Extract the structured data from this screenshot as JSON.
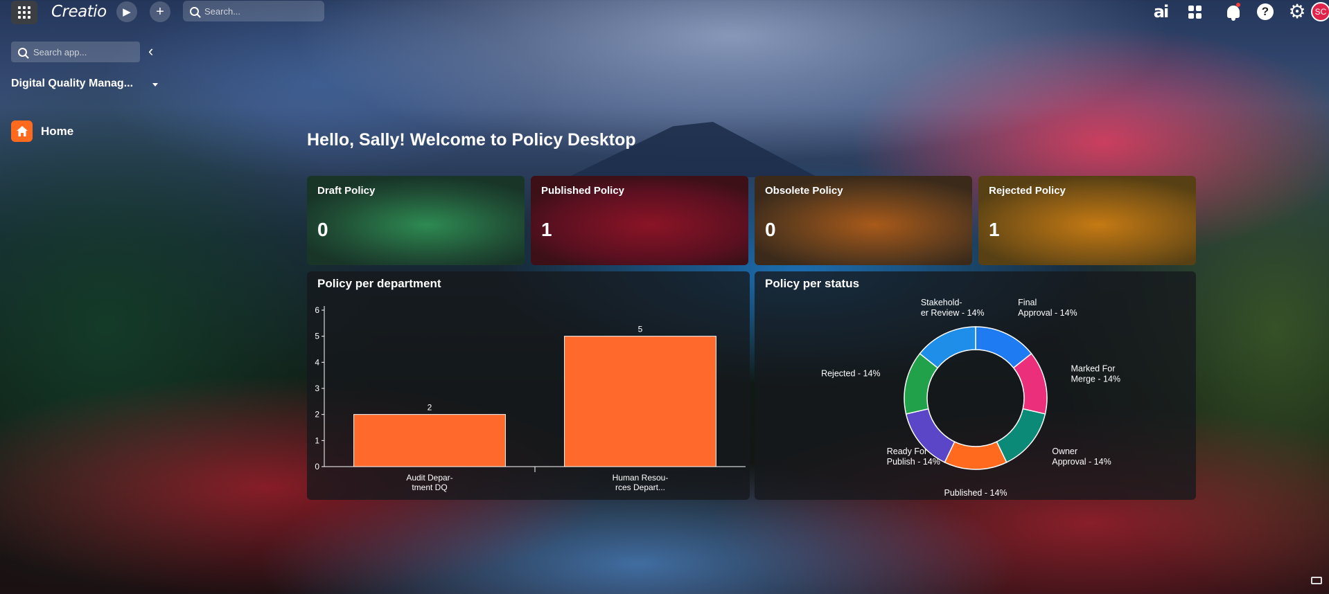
{
  "topbar": {
    "brand": "Creatio",
    "search_placeholder": "Search...",
    "ai_label": "ai",
    "avatar_initials": "SC"
  },
  "sidebar": {
    "search_placeholder": "Search app...",
    "workspace": "Digital Quality Manag...",
    "items": [
      {
        "label": "Home",
        "icon": "home-icon",
        "color": "#ff6a1f"
      }
    ]
  },
  "main": {
    "greeting": "Hello, Sally! Welcome to Policy Desktop",
    "cards": [
      {
        "title": "Draft Policy",
        "value": "0",
        "color": "#2e8a52"
      },
      {
        "title": "Published Policy",
        "value": "1",
        "color": "#8a1426"
      },
      {
        "title": "Obsolete Policy",
        "value": "0",
        "color": "#a85a1a"
      },
      {
        "title": "Rejected Policy",
        "value": "1",
        "color": "#c57a14"
      }
    ]
  },
  "chart_data": [
    {
      "type": "bar",
      "title": "Policy per department",
      "categories": [
        [
          "Audit Depar-",
          "tment DQ"
        ],
        [
          "Human Resou-",
          "rces Depart..."
        ]
      ],
      "values": [
        2,
        5
      ],
      "ylim": [
        0,
        6
      ],
      "yticks": [
        0,
        1,
        2,
        3,
        4,
        5,
        6
      ],
      "bar_color": "#ff6a2c"
    },
    {
      "type": "pie",
      "title": "Policy per status",
      "slices": [
        {
          "label": [
            "Final",
            "Approval - 14%"
          ],
          "value": 14,
          "color": "#1e7bf2",
          "anchor": "start"
        },
        {
          "label": [
            "Marked For",
            "Merge - 14%"
          ],
          "value": 14,
          "color": "#ec2f7a",
          "anchor": "start"
        },
        {
          "label": [
            "Owner",
            "Approval - 14%"
          ],
          "value": 14,
          "color": "#0b8a78",
          "anchor": "start"
        },
        {
          "label": [
            "Published - 14%"
          ],
          "value": 14,
          "color": "#ff6a1f",
          "anchor": "middle"
        },
        {
          "label": [
            "Ready For",
            "Publish - 14%"
          ],
          "value": 14,
          "color": "#5b46c8",
          "anchor": "start"
        },
        {
          "label": [
            "Rejected - 14%"
          ],
          "value": 14,
          "color": "#21a24a",
          "anchor": "end"
        },
        {
          "label": [
            "Stakehold-",
            "er Review - 14%"
          ],
          "value": 14,
          "color": "#1e8ee8",
          "anchor": "start"
        }
      ]
    }
  ]
}
